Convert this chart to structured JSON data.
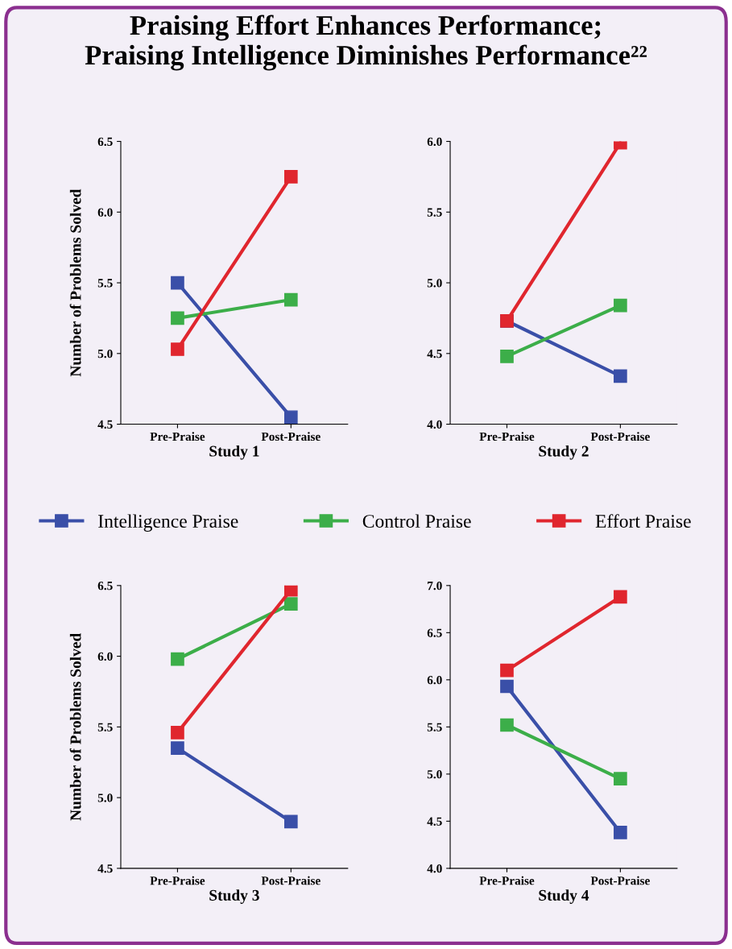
{
  "chart_data": [
    {
      "type": "line",
      "title": "Praising Effort Enhances Performance;\nPraising Intelligence Diminishes Performance²²",
      "xlabel": "Study 1",
      "ylabel": "Number of Problems Solved",
      "categories": [
        "Pre-Praise",
        "Post-Praise"
      ],
      "ylim": [
        4.5,
        6.5
      ],
      "yticks": [
        {
          "value": 4.5,
          "label": "4.5"
        },
        {
          "value": 5,
          "label": "5.0"
        },
        {
          "value": 5.5,
          "label": "5.5"
        },
        {
          "value": 6,
          "label": "6.0"
        },
        {
          "value": 6.5,
          "label": "6.5"
        }
      ],
      "marker": "square",
      "grid": false,
      "legend": "bottom",
      "series": [
        {
          "name": "Intelligence Praise",
          "color": "#3a4fa8",
          "values": [
            5.5,
            4.55
          ]
        },
        {
          "name": "Control Praise",
          "color": "#3cae49",
          "values": [
            5.25,
            5.38
          ]
        },
        {
          "name": "Effort Praise",
          "color": "#e0262e",
          "values": [
            5.03,
            6.25
          ]
        }
      ]
    },
    {
      "type": "line",
      "xlabel": "Study 2",
      "categories": [
        "Pre-Praise",
        "Post-Praise"
      ],
      "ylim": [
        4,
        6
      ],
      "yticks": [
        {
          "value": 4,
          "label": "4.0"
        },
        {
          "value": 4.5,
          "label": "4.5"
        },
        {
          "value": 5,
          "label": "5.0"
        },
        {
          "value": 5.5,
          "label": "5.5"
        },
        {
          "value": 6,
          "label": "6.0"
        }
      ],
      "marker": "square",
      "grid": false,
      "series": [
        {
          "color": "#3a4fa8",
          "values": [
            4.73,
            4.34
          ]
        },
        {
          "color": "#3cae49",
          "values": [
            4.48,
            4.84
          ]
        },
        {
          "color": "#e0262e",
          "values": [
            4.73,
            5.99
          ]
        }
      ]
    },
    {
      "type": "line",
      "xlabel": "Study 3",
      "ylabel": "Number of Problems Solved",
      "categories": [
        "Pre-Praise",
        "Post-Praise"
      ],
      "ylim": [
        4.5,
        6.5
      ],
      "yticks": [
        {
          "value": 4.5,
          "label": "4.5"
        },
        {
          "value": 5,
          "label": "5.0"
        },
        {
          "value": 5.5,
          "label": "5.5"
        },
        {
          "value": 6,
          "label": "6.0"
        },
        {
          "value": 6.5,
          "label": "6.5"
        }
      ],
      "marker": "square",
      "grid": false,
      "series": [
        {
          "color": "#3a4fa8",
          "values": [
            5.35,
            4.83
          ]
        },
        {
          "color": "#3cae49",
          "values": [
            5.98,
            6.37
          ]
        },
        {
          "color": "#e0262e",
          "values": [
            5.46,
            6.47
          ]
        }
      ]
    },
    {
      "type": "line",
      "xlabel": "Study 4",
      "categories": [
        "Pre-Praise",
        "Post-Praise"
      ],
      "ylim": [
        4,
        7
      ],
      "yticks": [
        {
          "value": 4,
          "label": "4.0"
        },
        {
          "value": 4.5,
          "label": "4.5"
        },
        {
          "value": 5,
          "label": "5.0"
        },
        {
          "value": 5.5,
          "label": "5.5"
        },
        {
          "value": 6,
          "label": "6.0"
        },
        {
          "value": 6.5,
          "label": "6.5"
        },
        {
          "value": 7,
          "label": "7.0"
        }
      ],
      "marker": "square",
      "grid": false,
      "series": [
        {
          "color": "#3a4fa8",
          "values": [
            5.93,
            4.38
          ]
        },
        {
          "color": "#3cae49",
          "values": [
            5.52,
            4.95
          ]
        },
        {
          "color": "#e0262e",
          "values": [
            6.1,
            6.88
          ]
        }
      ]
    }
  ]
}
